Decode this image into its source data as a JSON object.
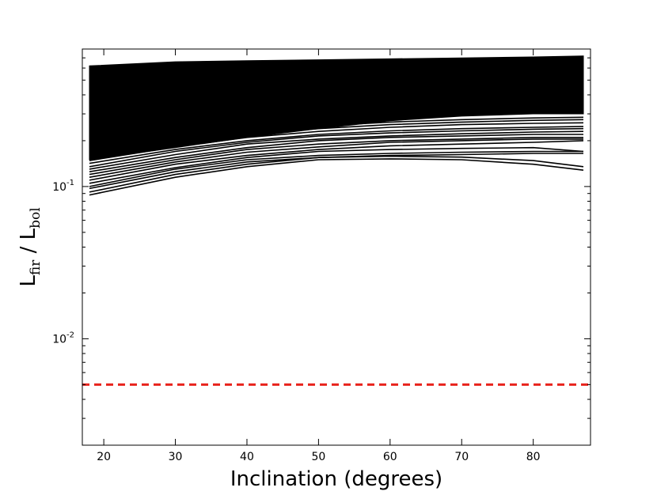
{
  "chart_data": {
    "type": "line",
    "title": "",
    "xlabel": "Inclination (degrees)",
    "ylabel": {
      "main": "L",
      "sub1": "fir",
      "separator": " / ",
      "main2": "L",
      "sub2": "bol"
    },
    "xlim": [
      17,
      88
    ],
    "ylim": [
      0.002,
      0.8
    ],
    "yscale": "log",
    "xticks": [
      20,
      30,
      40,
      50,
      60,
      70,
      80
    ],
    "xtick_labels": [
      "20",
      "30",
      "40",
      "50",
      "60",
      "70",
      "80"
    ],
    "yticks": [
      {
        "value": 0.1,
        "base": "10",
        "exp": "-1"
      },
      {
        "value": 0.01,
        "base": "10",
        "exp": "-2"
      }
    ],
    "grid": false,
    "x": [
      18,
      30,
      40,
      50,
      60,
      70,
      80,
      87
    ],
    "series_color": "#000000",
    "band": {
      "upper": [
        0.62,
        0.66,
        0.67,
        0.68,
        0.69,
        0.7,
        0.71,
        0.72
      ],
      "lower": [
        0.15,
        0.18,
        0.21,
        0.24,
        0.27,
        0.29,
        0.3,
        0.3
      ]
    },
    "series": [
      {
        "values": [
          0.088,
          0.115,
          0.135,
          0.15,
          0.152,
          0.15,
          0.14,
          0.128
        ]
      },
      {
        "values": [
          0.092,
          0.12,
          0.14,
          0.155,
          0.158,
          0.156,
          0.148,
          0.135
        ]
      },
      {
        "values": [
          0.097,
          0.125,
          0.145,
          0.155,
          0.16,
          0.162,
          0.165,
          0.165
        ]
      },
      {
        "values": [
          0.1,
          0.13,
          0.15,
          0.16,
          0.165,
          0.168,
          0.17,
          0.17
        ]
      },
      {
        "values": [
          0.105,
          0.133,
          0.155,
          0.17,
          0.175,
          0.178,
          0.18,
          0.17
        ]
      },
      {
        "values": [
          0.11,
          0.14,
          0.16,
          0.175,
          0.185,
          0.19,
          0.195,
          0.2
        ]
      },
      {
        "values": [
          0.115,
          0.145,
          0.168,
          0.182,
          0.195,
          0.2,
          0.205,
          0.205
        ]
      },
      {
        "values": [
          0.12,
          0.15,
          0.175,
          0.19,
          0.2,
          0.205,
          0.21,
          0.21
        ]
      },
      {
        "values": [
          0.125,
          0.155,
          0.18,
          0.2,
          0.21,
          0.215,
          0.22,
          0.22
        ]
      },
      {
        "values": [
          0.13,
          0.162,
          0.19,
          0.205,
          0.215,
          0.222,
          0.228,
          0.23
        ]
      },
      {
        "values": [
          0.135,
          0.17,
          0.195,
          0.215,
          0.225,
          0.232,
          0.238,
          0.24
        ]
      },
      {
        "values": [
          0.142,
          0.175,
          0.2,
          0.22,
          0.232,
          0.24,
          0.245,
          0.248
        ]
      },
      {
        "values": [
          0.148,
          0.182,
          0.21,
          0.23,
          0.245,
          0.255,
          0.26,
          0.262
        ]
      },
      {
        "values": [
          0.155,
          0.19,
          0.22,
          0.24,
          0.255,
          0.265,
          0.272,
          0.275
        ]
      },
      {
        "values": [
          0.16,
          0.195,
          0.225,
          0.25,
          0.265,
          0.275,
          0.282,
          0.285
        ]
      },
      {
        "values": [
          0.6,
          0.65,
          0.665,
          0.672,
          0.68,
          0.69,
          0.7,
          0.71
        ]
      },
      {
        "values": [
          0.56,
          0.62,
          0.64,
          0.65,
          0.66,
          0.67,
          0.68,
          0.69
        ]
      },
      {
        "values": [
          0.52,
          0.59,
          0.61,
          0.625,
          0.64,
          0.65,
          0.66,
          0.67
        ]
      }
    ],
    "reference_line": {
      "value": 0.005,
      "style": "dashed",
      "color": "#e8231d"
    }
  }
}
